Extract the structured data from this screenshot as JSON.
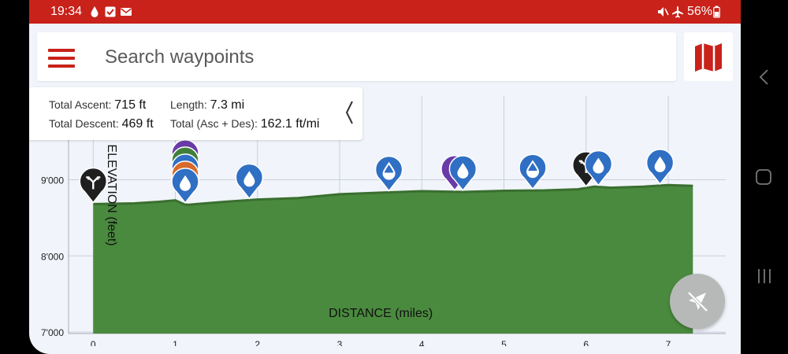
{
  "status_bar": {
    "time": "19:34",
    "battery": "56%",
    "left_icons": [
      "water-drop-icon",
      "checkbox-icon",
      "mail-icon"
    ],
    "right_icons": [
      "mute-icon",
      "airplane-icon",
      "battery-icon"
    ]
  },
  "search": {
    "placeholder": "Search waypoints",
    "value": ""
  },
  "stats": {
    "total_ascent_label": "Total Ascent:",
    "total_ascent_value": "715 ft",
    "length_label": "Length:",
    "length_value": "7.3 mi",
    "total_descent_label": "Total Descent:",
    "total_descent_value": "469 ft",
    "total_asc_des_label": "Total (Asc + Des):",
    "total_asc_des_value": "162.1 ft/mi"
  },
  "colors": {
    "accent": "#c8221a",
    "profile_fill": "#4a8a3e",
    "profile_line": "#3a6f30",
    "water_marker": "#2f6fc4",
    "junction_marker": "#1f1f1f"
  },
  "chart_data": {
    "type": "area",
    "xlabel": "DISTANCE (miles)",
    "ylabel": "ELEVATION (feet)",
    "xlim": [
      -0.3,
      7.7
    ],
    "ylim": [
      6980,
      10100
    ],
    "x_ticks": [
      0,
      1,
      2,
      3,
      4,
      5,
      6,
      7
    ],
    "x_tick_labels": [
      "0",
      "1",
      "2",
      "3",
      "4",
      "5",
      "6",
      "7"
    ],
    "y_ticks": [
      7000,
      8000,
      9000
    ],
    "y_tick_labels": [
      "7'000",
      "8'000",
      "9'000"
    ],
    "grid": true,
    "series": [
      {
        "x": [
          0,
          0.5,
          0.8,
          1.0,
          1.1,
          1.15,
          1.3,
          1.6,
          2.0,
          2.5,
          3.0,
          3.5,
          4.0,
          4.5,
          5.0,
          5.5,
          5.9,
          6.1,
          6.3,
          6.7,
          7.0,
          7.3
        ],
        "y": [
          8680,
          8690,
          8710,
          8730,
          8680,
          8670,
          8685,
          8710,
          8740,
          8760,
          8810,
          8830,
          8850,
          8840,
          8855,
          8860,
          8875,
          8910,
          8895,
          8910,
          8930,
          8920
        ]
      }
    ],
    "markers": [
      {
        "type": "junction",
        "x": 0.0,
        "icon": "junction-arrows-icon"
      },
      {
        "type": "water-stack",
        "x": 1.12,
        "icon": "water-drop-icon",
        "stack_colors": [
          "#6a3aa8",
          "#3f7f3a",
          "#2f6fc4",
          "#d86a2a",
          "#2f6fc4"
        ]
      },
      {
        "type": "water",
        "x": 1.9,
        "icon": "water-drop-icon"
      },
      {
        "type": "water-outline",
        "x": 3.6,
        "icon": "water-drop-outline-icon"
      },
      {
        "type": "water-purple",
        "x": 4.4,
        "icon": "water-drop-icon"
      },
      {
        "type": "water",
        "x": 4.5,
        "icon": "water-drop-icon"
      },
      {
        "type": "water-outline",
        "x": 5.35,
        "icon": "water-drop-outline-icon"
      },
      {
        "type": "junction",
        "x": 6.0,
        "icon": "junction-arrows-icon"
      },
      {
        "type": "water",
        "x": 6.15,
        "icon": "water-drop-icon"
      },
      {
        "type": "water",
        "x": 6.9,
        "icon": "water-drop-icon"
      }
    ]
  }
}
